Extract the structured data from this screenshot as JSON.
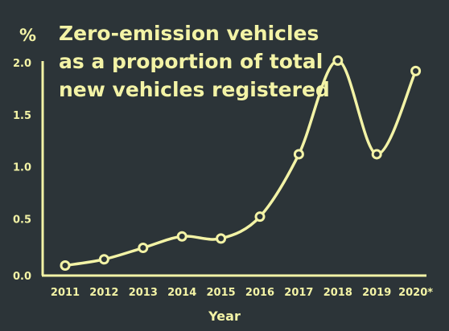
{
  "chart_data": {
    "type": "line",
    "title": "Zero-emission vehicles as a proportion of total new vehicles registered",
    "ylabel": "%",
    "xlabel": "Year",
    "ylim": [
      0,
      2.0
    ],
    "yticks": [
      "0.0",
      "0.5",
      "1.0",
      "1.5",
      "2.0"
    ],
    "categories": [
      "2011",
      "2012",
      "2013",
      "2014",
      "2015",
      "2016",
      "2017",
      "2018",
      "2019",
      "2020*"
    ],
    "series": [
      {
        "values": [
          0.05,
          0.11,
          0.22,
          0.33,
          0.31,
          0.52,
          1.12,
          2.02,
          1.12,
          1.92
        ]
      }
    ],
    "grid": false,
    "colors": {
      "background": "#2c3438",
      "line": "#f3f3a6",
      "marker_fill": "#2c3438"
    }
  }
}
